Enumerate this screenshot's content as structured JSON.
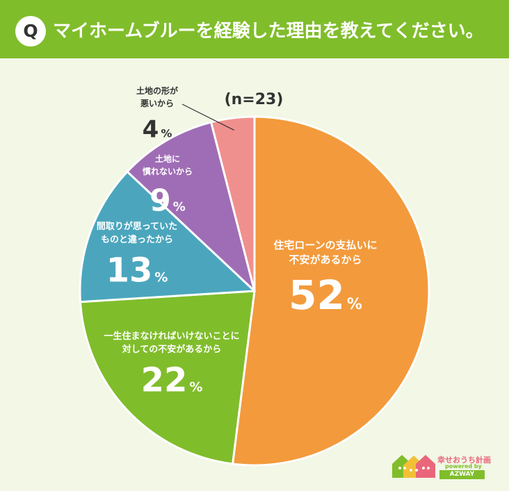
{
  "header": {
    "q_badge": "Q",
    "question": "マイホームブルーを経験した理由を教えてください。"
  },
  "chart_data": {
    "type": "pie",
    "title": "マイホームブルーを経験した理由を教えてください。",
    "sample_size_label": "(n=23)",
    "unit": "%",
    "slices": [
      {
        "label_lines": [
          "住宅ローンの支払いに",
          "不安があるから"
        ],
        "value": 52,
        "color": "#f39a3c"
      },
      {
        "label_lines": [
          "一生住まなければいけないことに",
          "対しての不安があるから"
        ],
        "value": 22,
        "color": "#80bd2b"
      },
      {
        "label_lines": [
          "間取りが思っていた",
          "ものと違ったから"
        ],
        "value": 13,
        "color": "#4ba6bd"
      },
      {
        "label_lines": [
          "土地に",
          "慣れないから"
        ],
        "value": 9,
        "color": "#9f6db5"
      },
      {
        "label_lines": [
          "土地の形が",
          "悪いから"
        ],
        "value": 4,
        "color": "#f0908e"
      }
    ]
  },
  "colors": {
    "header_bg": "#80bd2b",
    "page_bg": "#f2f7e6",
    "text_dark": "#333333"
  },
  "brand": {
    "name": "幸せおうち計画",
    "powered_by": "powered by",
    "company": "AZWAY"
  }
}
